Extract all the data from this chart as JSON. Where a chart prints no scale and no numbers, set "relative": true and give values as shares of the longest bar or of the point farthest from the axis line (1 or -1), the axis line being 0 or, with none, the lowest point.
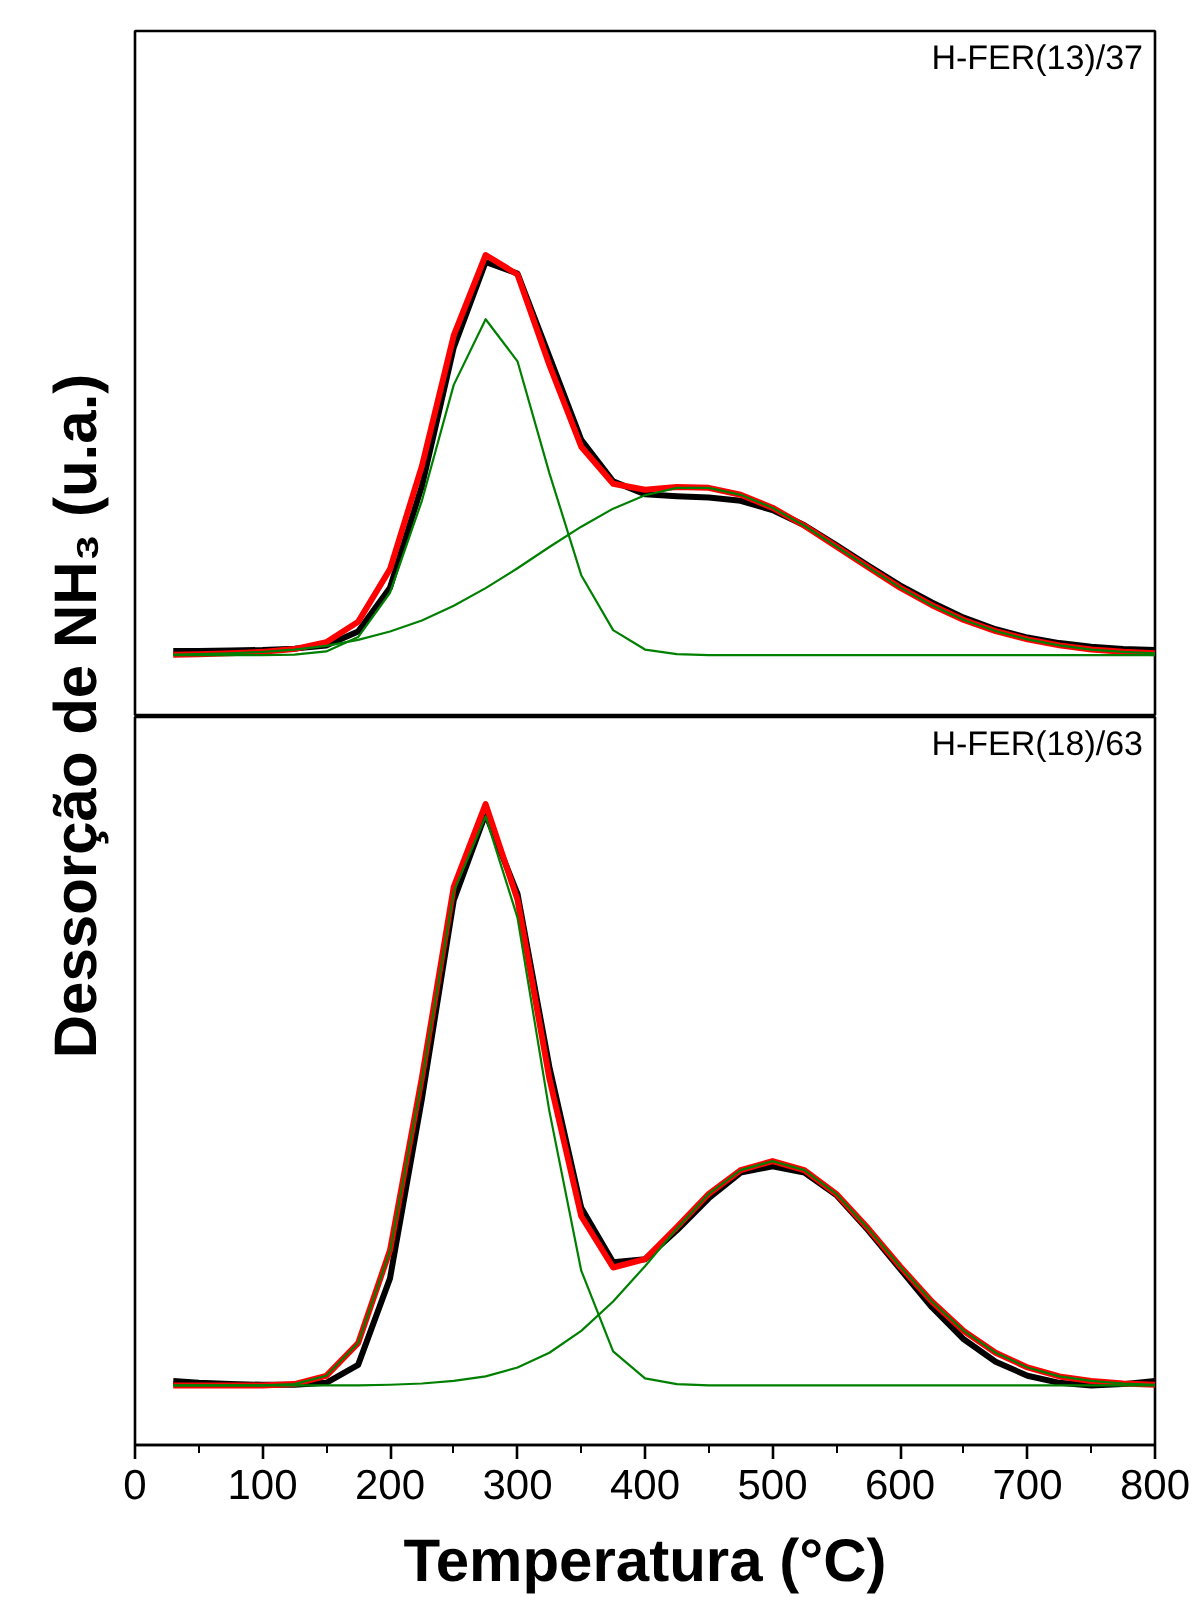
{
  "chart_data": [
    {
      "type": "line",
      "relative": true,
      "ylabel": "Dessorção de NH₃ (u.a.)",
      "annotations": [
        "H-FER(13)/37"
      ],
      "xlim": [
        0,
        800
      ],
      "xticks": [
        0,
        100,
        200,
        300,
        400,
        500,
        600,
        700,
        800
      ],
      "tick_labels": false,
      "grid": false,
      "marker": "none",
      "line_style": "solid",
      "x": [
        30,
        50,
        75,
        100,
        125,
        150,
        175,
        200,
        225,
        250,
        275,
        300,
        325,
        350,
        375,
        400,
        425,
        450,
        475,
        500,
        525,
        550,
        575,
        600,
        625,
        650,
        675,
        700,
        725,
        750,
        775,
        800
      ],
      "series": [
        {
          "color": "#000000",
          "values": [
            0.143,
            0.143,
            0.144,
            0.145,
            0.148,
            0.155,
            0.185,
            0.28,
            0.5,
            0.8,
            0.985,
            0.96,
            0.78,
            0.6,
            0.51,
            0.482,
            0.478,
            0.475,
            0.468,
            0.448,
            0.415,
            0.372,
            0.328,
            0.285,
            0.248,
            0.215,
            0.19,
            0.172,
            0.16,
            0.152,
            0.147,
            0.145
          ]
        },
        {
          "color": "#ff0000",
          "values": [
            0.135,
            0.136,
            0.138,
            0.141,
            0.147,
            0.162,
            0.206,
            0.32,
            0.543,
            0.826,
            1.0,
            0.958,
            0.762,
            0.585,
            0.505,
            0.492,
            0.498,
            0.496,
            0.481,
            0.453,
            0.414,
            0.369,
            0.324,
            0.28,
            0.242,
            0.21,
            0.186,
            0.168,
            0.155,
            0.146,
            0.141,
            0.138
          ]
        },
        {
          "color": "#008000",
          "values": [
            0.134,
            0.134,
            0.134,
            0.134,
            0.135,
            0.142,
            0.173,
            0.269,
            0.468,
            0.719,
            0.861,
            0.77,
            0.528,
            0.307,
            0.188,
            0.146,
            0.136,
            0.134,
            0.134,
            0.134,
            0.134,
            0.134,
            0.134,
            0.134,
            0.134,
            0.134,
            0.134,
            0.134,
            0.134,
            0.134,
            0.134,
            0.134
          ]
        },
        {
          "color": "#008000",
          "values": [
            0.135,
            0.136,
            0.138,
            0.141,
            0.146,
            0.154,
            0.167,
            0.185,
            0.209,
            0.241,
            0.279,
            0.322,
            0.368,
            0.412,
            0.451,
            0.48,
            0.496,
            0.496,
            0.481,
            0.453,
            0.414,
            0.369,
            0.324,
            0.28,
            0.242,
            0.21,
            0.186,
            0.168,
            0.155,
            0.146,
            0.141,
            0.138
          ]
        }
      ]
    },
    {
      "type": "line",
      "relative": true,
      "xlabel": "Temperatura (°C)",
      "annotations": [
        "H-FER(18)/63"
      ],
      "xlim": [
        0,
        800
      ],
      "xticks": [
        0,
        100,
        200,
        300,
        400,
        500,
        600,
        700,
        800
      ],
      "tick_labels": "x",
      "grid": false,
      "marker": "none",
      "line_style": "solid",
      "x": [
        30,
        50,
        75,
        100,
        125,
        150,
        175,
        200,
        225,
        250,
        275,
        300,
        325,
        350,
        375,
        400,
        425,
        450,
        475,
        500,
        525,
        550,
        575,
        600,
        625,
        650,
        675,
        700,
        725,
        750,
        775,
        800
      ],
      "series": [
        {
          "color": "#000000",
          "values": [
            0.1,
            0.097,
            0.095,
            0.094,
            0.094,
            0.097,
            0.125,
            0.26,
            0.54,
            0.85,
            0.985,
            0.86,
            0.59,
            0.37,
            0.285,
            0.29,
            0.335,
            0.385,
            0.425,
            0.435,
            0.425,
            0.39,
            0.335,
            0.275,
            0.215,
            0.165,
            0.13,
            0.108,
            0.097,
            0.093,
            0.095,
            0.1
          ]
        },
        {
          "color": "#ff0000",
          "values": [
            0.093,
            0.093,
            0.093,
            0.093,
            0.095,
            0.108,
            0.159,
            0.304,
            0.573,
            0.871,
            1.0,
            0.851,
            0.572,
            0.357,
            0.277,
            0.29,
            0.34,
            0.392,
            0.429,
            0.443,
            0.429,
            0.392,
            0.338,
            0.279,
            0.224,
            0.178,
            0.144,
            0.121,
            0.107,
            0.1,
            0.096,
            0.094
          ]
        },
        {
          "color": "#008000",
          "values": [
            0.093,
            0.093,
            0.093,
            0.093,
            0.095,
            0.108,
            0.159,
            0.303,
            0.57,
            0.864,
            0.981,
            0.823,
            0.521,
            0.272,
            0.146,
            0.104,
            0.095,
            0.093,
            0.093,
            0.093,
            0.093,
            0.093,
            0.093,
            0.093,
            0.093,
            0.093,
            0.093,
            0.093,
            0.093,
            0.093,
            0.093,
            0.093
          ]
        },
        {
          "color": "#008000",
          "values": [
            0.093,
            0.093,
            0.093,
            0.093,
            0.093,
            0.093,
            0.093,
            0.094,
            0.096,
            0.1,
            0.107,
            0.121,
            0.144,
            0.178,
            0.224,
            0.279,
            0.338,
            0.392,
            0.429,
            0.443,
            0.429,
            0.392,
            0.338,
            0.279,
            0.224,
            0.178,
            0.144,
            0.121,
            0.107,
            0.1,
            0.096,
            0.094
          ]
        }
      ]
    }
  ]
}
